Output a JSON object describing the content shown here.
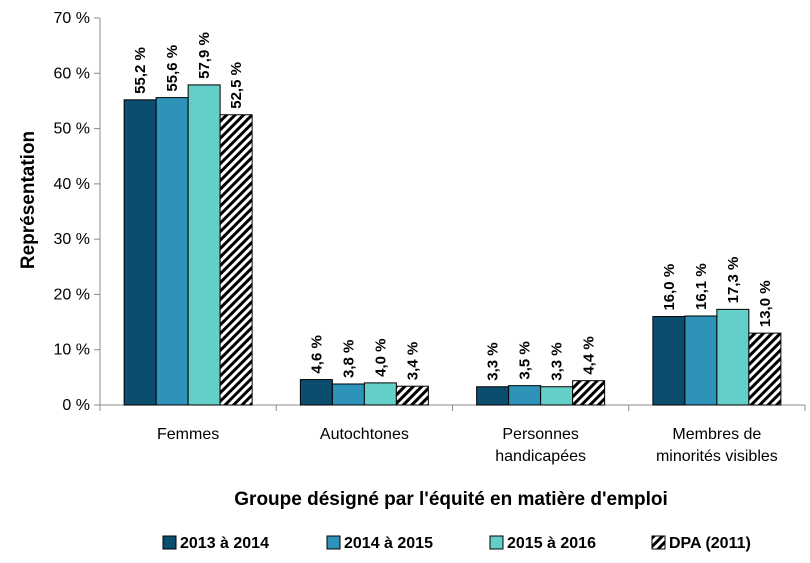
{
  "chart_data": {
    "type": "bar",
    "title": "",
    "xlabel": "Groupe désigné par l'équité en matière d'emploi",
    "ylabel": "Représentation",
    "ylim": [
      0,
      70
    ],
    "yticks": [
      0,
      10,
      20,
      30,
      40,
      50,
      60,
      70
    ],
    "ytick_labels": [
      "0 %",
      "10 %",
      "20 %",
      "30 %",
      "40 %",
      "50 %",
      "60 %",
      "70 %"
    ],
    "grid": false,
    "legend_position": "bottom",
    "categories": [
      [
        "Femmes"
      ],
      [
        "Autochtones"
      ],
      [
        "Personnes",
        "handicapées"
      ],
      [
        "Membres de",
        "minorités visibles"
      ]
    ],
    "series": [
      {
        "name": "2013 à 2014",
        "color": "#0b4d6e",
        "pattern": "solid",
        "values": [
          55.2,
          4.6,
          3.3,
          16.0
        ],
        "labels": [
          "55,2 %",
          "4,6 %",
          "3,3 %",
          "16,0 %"
        ]
      },
      {
        "name": "2014 à 2015",
        "color": "#2e93b9",
        "pattern": "solid",
        "values": [
          55.6,
          3.8,
          3.5,
          16.1
        ],
        "labels": [
          "55,6 %",
          "3,8 %",
          "3,5 %",
          "16,1 %"
        ]
      },
      {
        "name": "2015 à 2016",
        "color": "#63cfc8",
        "pattern": "solid",
        "values": [
          57.9,
          4.0,
          3.3,
          17.3
        ],
        "labels": [
          "57,9 %",
          "4,0 %",
          "3,3 %",
          "17,3 %"
        ]
      },
      {
        "name": "DPA (2011)",
        "color": "#000000",
        "pattern": "hatch",
        "values": [
          52.5,
          3.4,
          4.4,
          13.0
        ],
        "labels": [
          "52,5 %",
          "3,4 %",
          "4,4 %",
          "13,0 %"
        ]
      }
    ]
  }
}
